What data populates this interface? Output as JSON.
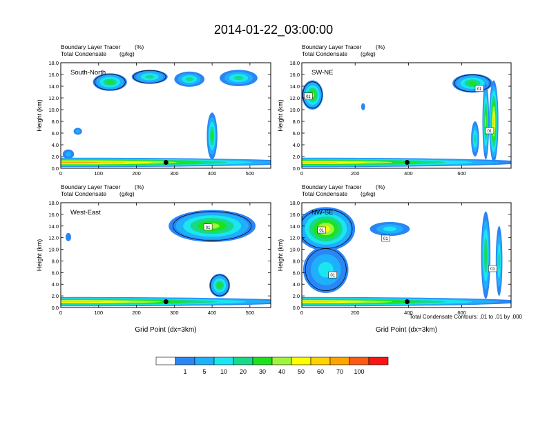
{
  "figure": {
    "title": "2014-01-22_03:00:00",
    "footnote": "Total Condensate Contours: .01 to .01 by .000"
  },
  "colorbar": {
    "colors": [
      "#ffffff",
      "#2b86f5",
      "#1fb0fb",
      "#1be6f0",
      "#17d98a",
      "#1ee11e",
      "#9ff53c",
      "#ffff00",
      "#ffd200",
      "#ffa400",
      "#ff5a14",
      "#fa1414"
    ],
    "labels": [
      "1",
      "5",
      "10",
      "20",
      "30",
      "40",
      "50",
      "60",
      "70",
      "100"
    ]
  },
  "chart_data": [
    {
      "type": "heatmap",
      "panel": "top-left",
      "section_label": "South-North",
      "subtitle_left": "Boundary Layer Tracer",
      "subtitle_unit": "(%)",
      "subtitle_left2": "Total Condensate",
      "subtitle_unit2": "(g/kg)",
      "ylabel": "Height (km)",
      "xlabel": "",
      "xlim": [
        0,
        555
      ],
      "ylim": [
        0,
        18
      ],
      "xticks": [
        0,
        100,
        200,
        300,
        400,
        500
      ],
      "yticks": [
        "0.0",
        "2.0",
        "4.0",
        "6.0",
        "8.0",
        "10.0",
        "12.0",
        "14.0",
        "16.0",
        "18.0"
      ],
      "marker_x": 278,
      "marker_y": 1.0,
      "contour_labels": [],
      "blobs": [
        {
          "x": 40,
          "y": 1.0,
          "w": 1200,
          "h": 1.6,
          "lvl": 9
        },
        {
          "x": 130,
          "y": 14.7,
          "w": 90,
          "h": 3.0,
          "lvl": 5
        },
        {
          "x": 235,
          "y": 15.6,
          "w": 95,
          "h": 2.4,
          "lvl": 4
        },
        {
          "x": 340,
          "y": 15.2,
          "w": 80,
          "h": 2.6,
          "lvl": 4
        },
        {
          "x": 470,
          "y": 15.4,
          "w": 100,
          "h": 2.8,
          "lvl": 4
        },
        {
          "x": 400,
          "y": 5.5,
          "w": 28,
          "h": 8.0,
          "lvl": 5
        },
        {
          "x": 45,
          "y": 6.3,
          "w": 22,
          "h": 1.2,
          "lvl": 2
        },
        {
          "x": 20,
          "y": 2.4,
          "w": 30,
          "h": 1.6,
          "lvl": 2
        }
      ]
    },
    {
      "type": "heatmap",
      "panel": "top-right",
      "section_label": "SW-NE",
      "subtitle_left": "Boundary Layer Tracer",
      "subtitle_unit": "(%)",
      "subtitle_left2": "Total Condensate",
      "subtitle_unit2": "(g/kg)",
      "ylabel": "Height (km)",
      "xlabel": "",
      "xlim": [
        0,
        785
      ],
      "ylim": [
        0,
        18
      ],
      "xticks": [
        0,
        200,
        400,
        600
      ],
      "yticks": [
        "0.0",
        "2.0",
        "4.0",
        "6.0",
        "8.0",
        "10.0",
        "12.0",
        "14.0",
        "16.0",
        "18.0"
      ],
      "marker_x": 395,
      "marker_y": 1.0,
      "contour_labels": [
        "01",
        "01",
        "01"
      ],
      "blobs": [
        {
          "x": 40,
          "y": 1.0,
          "w": 1600,
          "h": 1.6,
          "lvl": 8
        },
        {
          "x": 40,
          "y": 12.5,
          "w": 80,
          "h": 5.0,
          "lvl": 6
        },
        {
          "x": 640,
          "y": 14.5,
          "w": 150,
          "h": 3.2,
          "lvl": 5
        },
        {
          "x": 720,
          "y": 8.0,
          "w": 35,
          "h": 14.0,
          "lvl": 8
        },
        {
          "x": 690,
          "y": 8.0,
          "w": 25,
          "h": 13.0,
          "lvl": 6
        },
        {
          "x": 650,
          "y": 5.0,
          "w": 30,
          "h": 6.0,
          "lvl": 4
        },
        {
          "x": 230,
          "y": 10.5,
          "w": 15,
          "h": 1.2,
          "lvl": 1
        }
      ]
    },
    {
      "type": "heatmap",
      "panel": "bottom-left",
      "section_label": "West-East",
      "subtitle_left": "Boundary Layer Tracer",
      "subtitle_unit": "(%)",
      "subtitle_left2": "Total Condensate",
      "subtitle_unit2": "(g/kg)",
      "ylabel": "Height (km)",
      "xlabel": "Grid Point (dx=3km)",
      "xlim": [
        0,
        555
      ],
      "ylim": [
        0,
        18
      ],
      "xticks": [
        0,
        100,
        200,
        300,
        400,
        500
      ],
      "yticks": [
        "0.0",
        "2.0",
        "4.0",
        "6.0",
        "8.0",
        "10.0",
        "12.0",
        "14.0",
        "16.0",
        "18.0"
      ],
      "marker_x": 278,
      "marker_y": 1.0,
      "contour_labels": [
        "01"
      ],
      "blobs": [
        {
          "x": 40,
          "y": 1.0,
          "w": 1200,
          "h": 1.6,
          "lvl": 8
        },
        {
          "x": 400,
          "y": 14.0,
          "w": 230,
          "h": 5.5,
          "lvl": 6
        },
        {
          "x": 420,
          "y": 3.8,
          "w": 55,
          "h": 4.0,
          "lvl": 5
        },
        {
          "x": 20,
          "y": 12.1,
          "w": 15,
          "h": 1.4,
          "lvl": 1
        }
      ]
    },
    {
      "type": "heatmap",
      "panel": "bottom-right",
      "section_label": "NW-SE",
      "subtitle_left": "Boundary Layer Tracer",
      "subtitle_unit": "(%)",
      "subtitle_left2": "Total Condensate",
      "subtitle_unit2": "(g/kg)",
      "ylabel": "Height (km)",
      "xlabel": "Grid Point (dx=3km)",
      "xlim": [
        0,
        785
      ],
      "ylim": [
        0,
        18
      ],
      "xticks": [
        0,
        200,
        400,
        600
      ],
      "yticks": [
        "0.0",
        "2.0",
        "4.0",
        "6.0",
        "8.0",
        "10.0",
        "12.0",
        "14.0",
        "16.0",
        "18.0"
      ],
      "marker_x": 395,
      "marker_y": 1.0,
      "contour_labels": [
        "01",
        "01",
        "01",
        "01"
      ],
      "blobs": [
        {
          "x": 40,
          "y": 1.0,
          "w": 1600,
          "h": 1.6,
          "lvl": 8
        },
        {
          "x": 90,
          "y": 13.5,
          "w": 220,
          "h": 7.5,
          "lvl": 7
        },
        {
          "x": 90,
          "y": 6.5,
          "w": 170,
          "h": 8.0,
          "lvl": 3
        },
        {
          "x": 330,
          "y": 13.5,
          "w": 150,
          "h": 2.4,
          "lvl": 3
        },
        {
          "x": 690,
          "y": 9.0,
          "w": 35,
          "h": 15.0,
          "lvl": 5
        },
        {
          "x": 740,
          "y": 8.0,
          "w": 25,
          "h": 12.0,
          "lvl": 4
        }
      ]
    }
  ]
}
